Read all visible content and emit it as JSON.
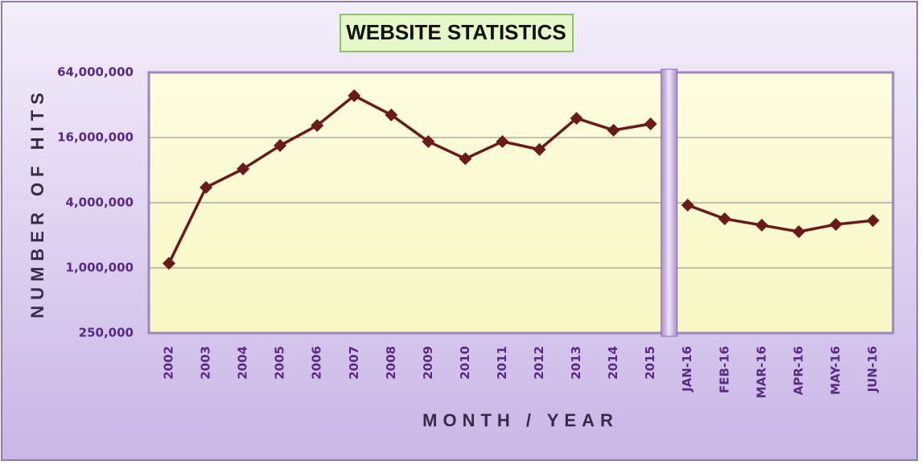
{
  "chart_data": {
    "type": "line",
    "title": "WEBSITE STATISTICS",
    "x_label": "MONTH / YEAR",
    "y_label": "NUMBER OF HITS",
    "categories": [
      "2002",
      "2003",
      "2004",
      "2005",
      "2006",
      "2007",
      "2008",
      "2009",
      "2010",
      "2011",
      "2012",
      "2013",
      "2014",
      "2015",
      "JAN-16",
      "FEB-16",
      "MAR-16",
      "APR-16",
      "MAY-16",
      "JUN-16"
    ],
    "series": [
      {
        "color": "#6b1a1a",
        "values": [
          1100000,
          5540000,
          8200000,
          13500000,
          20700000,
          39000000,
          25900000,
          14700000,
          10200000,
          14700000,
          12400000,
          24100000,
          18700000,
          21400000,
          null,
          null,
          null,
          null,
          null,
          null
        ]
      },
      {
        "color": "#6b1a1a",
        "values": [
          null,
          null,
          null,
          null,
          null,
          null,
          null,
          null,
          null,
          null,
          null,
          null,
          null,
          null,
          3800000,
          2840000,
          2480000,
          2160000,
          2520000,
          2740000
        ]
      }
    ],
    "yscale": "log",
    "ylim": [
      250000,
      64000000
    ],
    "yticks": [
      {
        "value": 250000,
        "label": "250,000"
      },
      {
        "value": 1000000,
        "label": "1,000,000"
      },
      {
        "value": 4000000,
        "label": "4,000,000"
      },
      {
        "value": 16000000,
        "label": "16,000,000"
      },
      {
        "value": 64000000,
        "label": "64,000,000"
      }
    ],
    "grid": true
  }
}
